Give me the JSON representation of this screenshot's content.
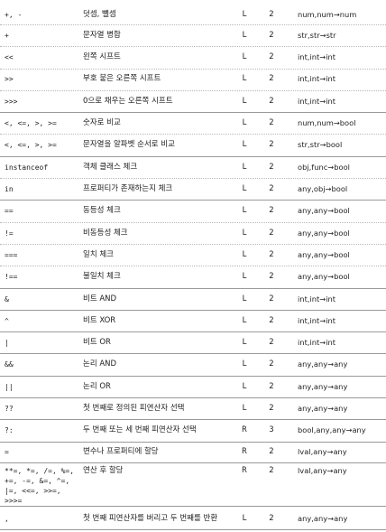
{
  "rows": [
    {
      "op": "+, -",
      "desc": "덧셈, 뺄셈",
      "assoc": "L",
      "n": "2",
      "types": "num,num→num"
    },
    {
      "op": "+",
      "desc": "문자열 병합",
      "assoc": "L",
      "n": "2",
      "types": "str,str→str"
    },
    {
      "op": "<<",
      "desc": "왼쪽 시프트",
      "assoc": "L",
      "n": "2",
      "types": "int,int→int"
    },
    {
      "op": ">>",
      "desc": "부호 붙은 오른쪽 시프트",
      "assoc": "L",
      "n": "2",
      "types": "int,int→int"
    },
    {
      "op": ">>>",
      "desc": "0으로 채우는 오른쪽 시프트",
      "assoc": "L",
      "n": "2",
      "types": "int,int→int"
    },
    {
      "op": "<, <=, >, >=",
      "desc": "숫자로 비교",
      "assoc": "L",
      "n": "2",
      "types": "num,num→bool"
    },
    {
      "op": "<, <=, >, >=",
      "desc": "문자열을 알파벳 순서로 비교",
      "assoc": "L",
      "n": "2",
      "types": "str,str→bool"
    },
    {
      "op": "instanceof",
      "desc": "객체 클래스 체크",
      "assoc": "L",
      "n": "2",
      "types": "obj,func→bool"
    },
    {
      "op": "in",
      "desc": "프로퍼티가 존재하는지 체크",
      "assoc": "L",
      "n": "2",
      "types": "any,obj→bool"
    },
    {
      "op": "==",
      "desc": "동등성 체크",
      "assoc": "L",
      "n": "2",
      "types": "any,any→bool"
    },
    {
      "op": "!=",
      "desc": "비동등성 체크",
      "assoc": "L",
      "n": "2",
      "types": "any,any→bool"
    },
    {
      "op": "===",
      "desc": "일치 체크",
      "assoc": "L",
      "n": "2",
      "types": "any,any→bool"
    },
    {
      "op": "!==",
      "desc": "불일치 체크",
      "assoc": "L",
      "n": "2",
      "types": "any,any→bool"
    },
    {
      "op": "&",
      "desc": "비트 AND",
      "assoc": "L",
      "n": "2",
      "types": "int,int→int"
    },
    {
      "op": "^",
      "desc": "비트 XOR",
      "assoc": "L",
      "n": "2",
      "types": "int,int→int"
    },
    {
      "op": "|",
      "desc": "비트 OR",
      "assoc": "L",
      "n": "2",
      "types": "int,int→int"
    },
    {
      "op": "&&",
      "desc": "논리 AND",
      "assoc": "L",
      "n": "2",
      "types": "any,any→any"
    },
    {
      "op": "||",
      "desc": "논리 OR",
      "assoc": "L",
      "n": "2",
      "types": "any,any→any"
    },
    {
      "op": "??",
      "desc": "첫 번째로 정의된 피연산자 선택",
      "assoc": "L",
      "n": "2",
      "types": "any,any→any"
    },
    {
      "op": "?:",
      "desc": "두 번째 또는 세 번째 피연산자 선택",
      "assoc": "R",
      "n": "3",
      "types": "bool,any,any→any"
    },
    {
      "op": "=",
      "desc": "변수나 프로퍼티에 할당",
      "assoc": "R",
      "n": "2",
      "types": "lval,any→any"
    },
    {
      "op": "**=, *=, /=, %=, +=, -=, &=, ^=, |=, <<=, >>=, >>>=",
      "desc": "연산 후 할당",
      "assoc": "R",
      "n": "2",
      "types": "lval,any→any"
    },
    {
      "op": ",",
      "desc": "첫 번째 피연산자를 버리고 두 번째를 반환",
      "assoc": "L",
      "n": "2",
      "types": "any,any→any"
    }
  ]
}
